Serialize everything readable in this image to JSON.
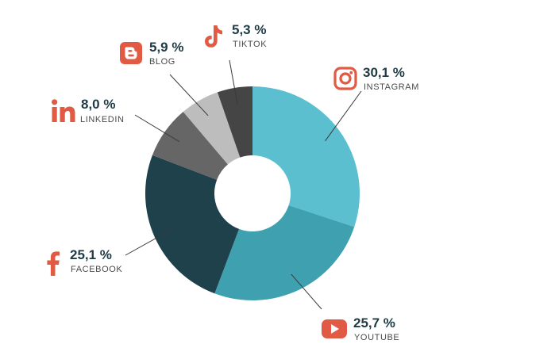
{
  "chart_data": {
    "type": "donut",
    "title": "",
    "start": "top",
    "direction": "clockwise",
    "slices": [
      {
        "name": "INSTAGRAM",
        "value": 30.1,
        "display": "30,1 %",
        "color": "#5bbfcf",
        "icon": "instagram-icon"
      },
      {
        "name": "YOUTUBE",
        "value": 25.7,
        "display": "25,7 %",
        "color": "#3fa1b0",
        "icon": "youtube-icon"
      },
      {
        "name": "FACEBOOK",
        "value": 25.1,
        "display": "25,1 %",
        "color": "#1f414b",
        "icon": "facebook-icon"
      },
      {
        "name": "LINKEDIN",
        "value": 8.0,
        "display": "8,0 %",
        "color": "#666666",
        "icon": "linkedin-icon"
      },
      {
        "name": "BLOG",
        "value": 5.9,
        "display": "5,9 %",
        "color": "#bdbdbd",
        "icon": "blog-icon"
      },
      {
        "name": "TIKTOK",
        "value": 5.3,
        "display": "5,3 %",
        "color": "#454545",
        "icon": "tiktok-icon"
      }
    ]
  },
  "colors": {
    "icon": "#e05a44",
    "value_text": "#1f3a44",
    "name_text": "#4a4a4a",
    "leader": "#3a3a3a"
  }
}
